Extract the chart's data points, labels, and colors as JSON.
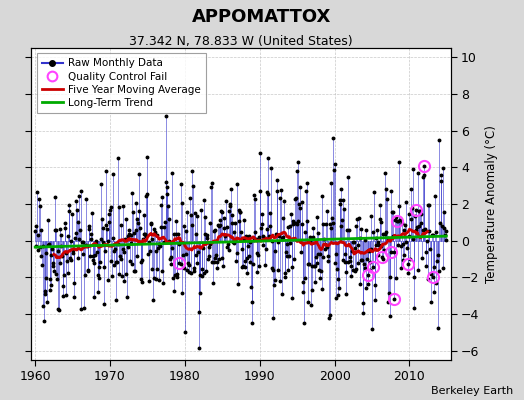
{
  "title": "APPOMATTOX",
  "subtitle": "37.342 N, 78.833 W (United States)",
  "ylabel": "Temperature Anomaly (°C)",
  "attribution": "Berkeley Earth",
  "xlim": [
    1959.5,
    2015.5
  ],
  "ylim": [
    -6.5,
    10.5
  ],
  "yticks": [
    -6,
    -4,
    -2,
    0,
    2,
    4,
    6,
    8,
    10
  ],
  "xticks": [
    1960,
    1970,
    1980,
    1990,
    2000,
    2010
  ],
  "bg_color": "#d8d8d8",
  "plot_bg": "#ffffff",
  "line_color": "#3333cc",
  "ma_color": "#cc0000",
  "trend_color": "#00aa00",
  "qc_color": "#ff44ff",
  "seed": 42
}
